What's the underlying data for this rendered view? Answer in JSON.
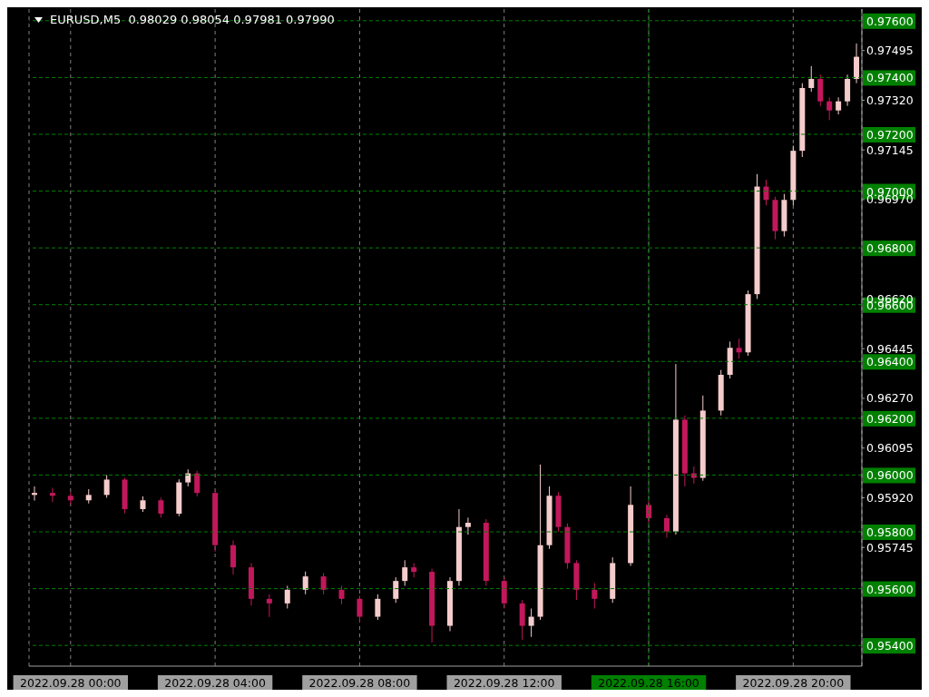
{
  "chart_data": {
    "type": "candlestick",
    "title": "EURUSD,M5  0.98029 0.98054 0.97981 0.97990",
    "x": [
      "2022-09-27T23:00",
      "2022-09-27T23:30",
      "2022-09-28T00:00",
      "2022-09-28T00:30",
      "2022-09-28T01:00",
      "2022-09-28T01:30",
      "2022-09-28T02:00",
      "2022-09-28T02:30",
      "2022-09-28T03:00",
      "2022-09-28T03:15",
      "2022-09-28T03:30",
      "2022-09-28T04:00",
      "2022-09-28T04:30",
      "2022-09-28T05:00",
      "2022-09-28T05:30",
      "2022-09-28T06:00",
      "2022-09-28T06:30",
      "2022-09-28T07:00",
      "2022-09-28T07:30",
      "2022-09-28T08:00",
      "2022-09-28T08:30",
      "2022-09-28T09:00",
      "2022-09-28T09:15",
      "2022-09-28T09:30",
      "2022-09-28T10:00",
      "2022-09-28T10:30",
      "2022-09-28T10:45",
      "2022-09-28T11:00",
      "2022-09-28T11:30",
      "2022-09-28T12:00",
      "2022-09-28T12:30",
      "2022-09-28T12:45",
      "2022-09-28T13:00",
      "2022-09-28T13:15",
      "2022-09-28T13:30",
      "2022-09-28T13:45",
      "2022-09-28T14:00",
      "2022-09-28T14:30",
      "2022-09-28T15:00",
      "2022-09-28T15:30",
      "2022-09-28T16:00",
      "2022-09-28T16:30",
      "2022-09-28T16:45",
      "2022-09-28T17:00",
      "2022-09-28T17:15",
      "2022-09-28T17:30",
      "2022-09-28T18:00",
      "2022-09-28T18:15",
      "2022-09-28T18:30",
      "2022-09-28T18:45",
      "2022-09-28T19:00",
      "2022-09-28T19:15",
      "2022-09-28T19:30",
      "2022-09-28T19:45",
      "2022-09-28T20:00",
      "2022-09-28T20:15",
      "2022-09-28T20:30",
      "2022-09-28T20:45",
      "2022-09-28T21:00",
      "2022-09-28T21:15",
      "2022-09-28T21:30",
      "2022-09-28T21:45"
    ],
    "ohlc": [
      [
        0.9593,
        0.9596,
        0.9591,
        0.95937
      ],
      [
        0.95937,
        0.95955,
        0.95905,
        0.95927
      ],
      [
        0.95927,
        0.9594,
        0.95895,
        0.95911
      ],
      [
        0.95911,
        0.9595,
        0.959,
        0.9593
      ],
      [
        0.9593,
        0.96,
        0.9592,
        0.95984
      ],
      [
        0.95984,
        0.9599,
        0.95865,
        0.9588
      ],
      [
        0.9588,
        0.95925,
        0.9587,
        0.95911
      ],
      [
        0.95911,
        0.9592,
        0.9585,
        0.95864
      ],
      [
        0.95864,
        0.95985,
        0.95855,
        0.95974
      ],
      [
        0.95974,
        0.9602,
        0.9596,
        0.96006
      ],
      [
        0.96006,
        0.96015,
        0.95925,
        0.95937
      ],
      [
        0.95937,
        0.95945,
        0.9573,
        0.95753
      ],
      [
        0.95753,
        0.9577,
        0.9565,
        0.95675
      ],
      [
        0.95675,
        0.9569,
        0.9554,
        0.95564
      ],
      [
        0.95564,
        0.9558,
        0.955,
        0.95548
      ],
      [
        0.95548,
        0.9561,
        0.9553,
        0.95596
      ],
      [
        0.95596,
        0.9566,
        0.9558,
        0.95643
      ],
      [
        0.95643,
        0.95655,
        0.9558,
        0.95596
      ],
      [
        0.95596,
        0.9561,
        0.95545,
        0.95564
      ],
      [
        0.95564,
        0.95575,
        0.9548,
        0.95501
      ],
      [
        0.95501,
        0.9558,
        0.9549,
        0.95564
      ],
      [
        0.95564,
        0.9564,
        0.9555,
        0.95627
      ],
      [
        0.95627,
        0.957,
        0.9561,
        0.95675
      ],
      [
        0.95675,
        0.9569,
        0.9564,
        0.95659
      ],
      [
        0.95659,
        0.9567,
        0.9541,
        0.95469
      ],
      [
        0.95469,
        0.9564,
        0.9545,
        0.95627
      ],
      [
        0.95627,
        0.9588,
        0.9561,
        0.95817
      ],
      [
        0.95817,
        0.9585,
        0.9579,
        0.95832
      ],
      [
        0.95832,
        0.95845,
        0.9561,
        0.95627
      ],
      [
        0.95627,
        0.9564,
        0.9553,
        0.95548
      ],
      [
        0.95548,
        0.9556,
        0.9542,
        0.95469
      ],
      [
        0.95469,
        0.9553,
        0.9543,
        0.95501
      ],
      [
        0.95501,
        0.96037,
        0.9549,
        0.95753
      ],
      [
        0.95753,
        0.9596,
        0.9574,
        0.95927
      ],
      [
        0.95927,
        0.9594,
        0.958,
        0.95817
      ],
      [
        0.95817,
        0.9583,
        0.9567,
        0.9569
      ],
      [
        0.9569,
        0.957,
        0.9556,
        0.95596
      ],
      [
        0.95596,
        0.9562,
        0.9553,
        0.95564
      ],
      [
        0.95564,
        0.9571,
        0.9555,
        0.9569
      ],
      [
        0.9569,
        0.9596,
        0.9568,
        0.95895
      ],
      [
        0.95895,
        0.9591,
        0.9583,
        0.95848
      ],
      [
        0.95848,
        0.9586,
        0.9578,
        0.95801
      ],
      [
        0.95801,
        0.96391,
        0.9579,
        0.96195
      ],
      [
        0.96195,
        0.9621,
        0.9596,
        0.96006
      ],
      [
        0.96006,
        0.9603,
        0.9597,
        0.9599
      ],
      [
        0.9599,
        0.9628,
        0.9598,
        0.96227
      ],
      [
        0.96227,
        0.9637,
        0.9621,
        0.96353
      ],
      [
        0.96353,
        0.9647,
        0.9634,
        0.96448
      ],
      [
        0.96448,
        0.9648,
        0.9641,
        0.96432
      ],
      [
        0.96432,
        0.9665,
        0.9642,
        0.96637
      ],
      [
        0.96637,
        0.9706,
        0.9662,
        0.97016
      ],
      [
        0.97016,
        0.9704,
        0.9695,
        0.96969
      ],
      [
        0.96969,
        0.9698,
        0.9683,
        0.96859
      ],
      [
        0.96859,
        0.9699,
        0.9684,
        0.96969
      ],
      [
        0.96969,
        0.9716,
        0.9695,
        0.97142
      ],
      [
        0.97142,
        0.9738,
        0.9712,
        0.97363
      ],
      [
        0.97363,
        0.9744,
        0.9735,
        0.97395
      ],
      [
        0.97395,
        0.9741,
        0.973,
        0.97316
      ],
      [
        0.97316,
        0.9733,
        0.9725,
        0.97284
      ],
      [
        0.97284,
        0.9733,
        0.9727,
        0.97316
      ],
      [
        0.97316,
        0.9741,
        0.973,
        0.97395
      ],
      [
        0.97395,
        0.9752,
        0.9738,
        0.97473
      ]
    ],
    "colors": [
      "#f5cccc",
      "#c2185b",
      "#c2185b",
      "#f5cccc",
      "#f5cccc",
      "#c2185b",
      "#f5cccc",
      "#c2185b",
      "#f5cccc",
      "#f5cccc",
      "#c2185b",
      "#c2185b",
      "#c2185b",
      "#c2185b",
      "#c2185b",
      "#f5cccc",
      "#f5cccc",
      "#c2185b",
      "#c2185b",
      "#c2185b",
      "#f5cccc",
      "#f5cccc",
      "#f5cccc",
      "#c2185b",
      "#c2185b",
      "#f5cccc",
      "#f5cccc",
      "#f5cccc",
      "#c2185b",
      "#c2185b",
      "#c2185b",
      "#f5cccc",
      "#f5cccc",
      "#f5cccc",
      "#c2185b",
      "#c2185b",
      "#c2185b",
      "#c2185b",
      "#f5cccc",
      "#f5cccc",
      "#c2185b",
      "#c2185b",
      "#f5cccc",
      "#c2185b",
      "#c2185b",
      "#f5cccc",
      "#f5cccc",
      "#f5cccc",
      "#c2185b",
      "#f5cccc",
      "#f5cccc",
      "#c2185b",
      "#c2185b",
      "#f5cccc",
      "#f5cccc",
      "#f5cccc",
      "#f5cccc",
      "#c2185b",
      "#c2185b",
      "#f5cccc",
      "#f5cccc",
      "#f5cccc"
    ],
    "xlim": [
      "2022-09-27T22:51",
      "2022-09-28T21:54"
    ],
    "xticks": [
      {
        "value": "2022-09-28T00:00",
        "label": "2022.09.28 00:00"
      },
      {
        "value": "2022-09-28T04:00",
        "label": "2022.09.28 04:00"
      },
      {
        "value": "2022-09-28T08:00",
        "label": "2022.09.28 08:00"
      },
      {
        "value": "2022-09-28T12:00",
        "label": "2022.09.28 12:00"
      },
      {
        "value": "2022-09-28T16:00",
        "label": "2022.09.28 16:00"
      },
      {
        "value": "2022-09-28T20:00",
        "label": "2022.09.28 20:00"
      }
    ],
    "ylim": [
      0.95327,
      0.97641
    ],
    "yticks": [
      {
        "value": 0.97495,
        "label": "0.97495"
      },
      {
        "value": 0.9732,
        "label": "0.97320"
      },
      {
        "value": 0.97145,
        "label": "0.97145"
      },
      {
        "value": 0.9697,
        "label": "0.96970"
      },
      {
        "value": 0.9662,
        "label": "0.96620"
      },
      {
        "value": 0.96445,
        "label": "0.96445"
      },
      {
        "value": 0.9627,
        "label": "0.96270"
      },
      {
        "value": 0.96095,
        "label": "0.96095"
      },
      {
        "value": 0.9592,
        "label": "0.95920"
      },
      {
        "value": 0.95745,
        "label": "0.95745"
      }
    ],
    "grid": "x",
    "ref_lines": [
      {
        "axis": "y",
        "value": 0.976,
        "label": "0.97600",
        "color": "#008000",
        "line_style": "dashed"
      },
      {
        "axis": "y",
        "value": 0.974,
        "label": "0.97400",
        "color": "#008000",
        "line_style": "dashed"
      },
      {
        "axis": "y",
        "value": 0.972,
        "label": "0.97200",
        "color": "#008000",
        "line_style": "dashed"
      },
      {
        "axis": "y",
        "value": 0.97,
        "label": "0.97000",
        "color": "#008000",
        "line_style": "dashed"
      },
      {
        "axis": "y",
        "value": 0.968,
        "label": "0.96800",
        "color": "#008000",
        "line_style": "dashed"
      },
      {
        "axis": "y",
        "value": 0.966,
        "label": "0.96600",
        "color": "#008000",
        "line_style": "dashed"
      },
      {
        "axis": "y",
        "value": 0.964,
        "label": "0.96400",
        "color": "#008000",
        "line_style": "dashed"
      },
      {
        "axis": "y",
        "value": 0.962,
        "label": "0.96200",
        "color": "#008000",
        "line_style": "dashed"
      },
      {
        "axis": "y",
        "value": 0.96,
        "label": "0.96000",
        "color": "#008000",
        "line_style": "dashed"
      },
      {
        "axis": "y",
        "value": 0.958,
        "label": "0.95800",
        "color": "#008000",
        "line_style": "dashed"
      },
      {
        "axis": "y",
        "value": 0.956,
        "label": "0.95600",
        "color": "#008000",
        "line_style": "dashed"
      },
      {
        "axis": "y",
        "value": 0.954,
        "label": "0.95400",
        "color": "#008000",
        "line_style": "dashed"
      },
      {
        "axis": "x",
        "value": "2022-09-28T16:00",
        "label": null,
        "color": "#008000",
        "line_style": "dashed"
      }
    ]
  }
}
